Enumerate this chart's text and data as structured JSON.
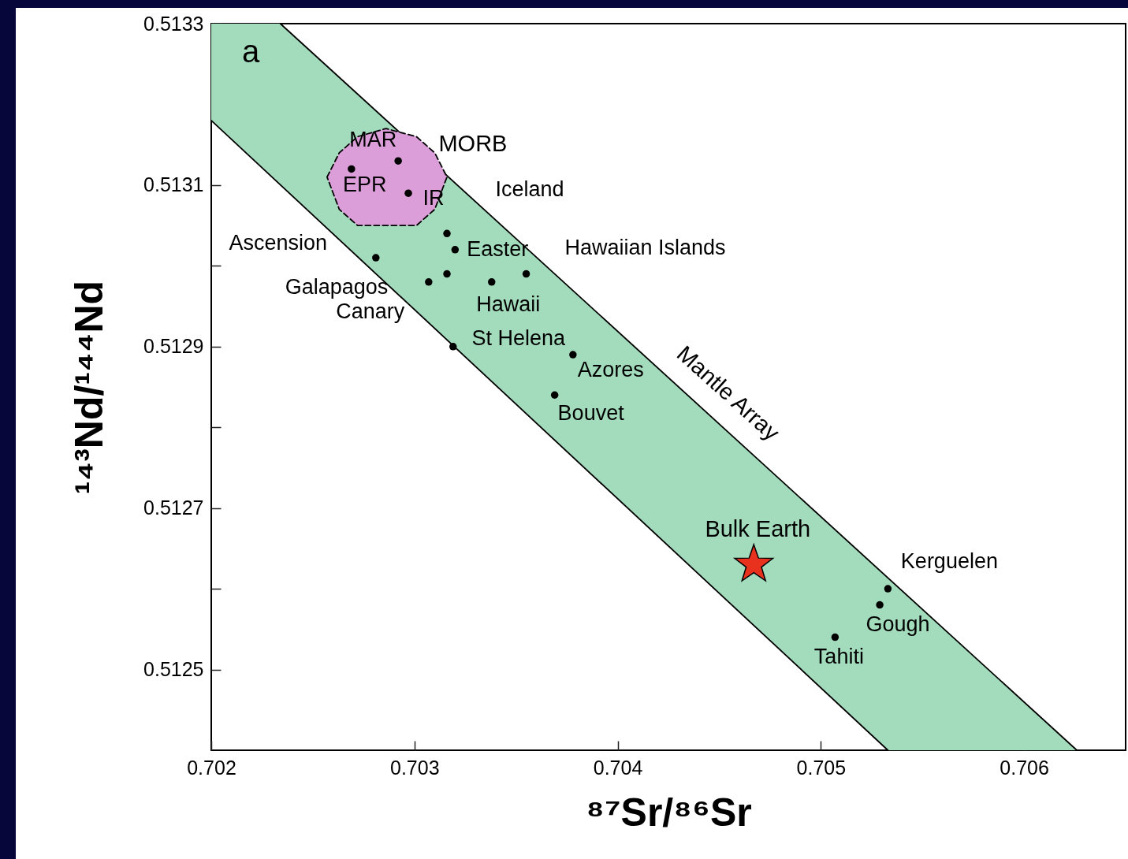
{
  "chart_data": {
    "type": "scatter",
    "xlabel": "⁸⁷Sr/⁸⁶Sr",
    "ylabel": "¹⁴³Nd/¹⁴⁴Nd",
    "xlim": [
      0.702,
      0.7065
    ],
    "ylim": [
      0.5124,
      0.5133
    ],
    "xticks": [
      0.702,
      0.703,
      0.704,
      0.705,
      0.706
    ],
    "yticks": [
      0.5125,
      {
        "value": 0.5126,
        "label": null
      },
      0.5127,
      {
        "value": 0.5128,
        "label": null
      },
      0.5129,
      {
        "value": 0.513,
        "label": null
      },
      0.5131,
      {
        "value": 0.5132,
        "label": null
      },
      0.5133
    ],
    "grid": false,
    "series": [
      {
        "name": "Mantle Array",
        "type": "line",
        "line_style": "solid",
        "color": "#000000",
        "x": [
          0.70234,
          0.70626
        ],
        "values": [
          0.5133,
          0.5124
        ]
      },
      {
        "type": "line",
        "line_style": "solid",
        "color": "#000000",
        "x": [
          0.702,
          0.70533
        ],
        "values": [
          0.51318,
          0.5124
        ]
      },
      {
        "name": "MORB",
        "type": "area",
        "line_style": "dashed",
        "color": "#dc9ed8",
        "x": [
          0.70257,
          0.70263,
          0.70272,
          0.70286,
          0.70301,
          0.7031,
          0.70316,
          0.7031,
          0.70301,
          0.70286,
          0.70272,
          0.70263,
          0.70257
        ],
        "values": [
          0.51311,
          0.51314,
          0.51316,
          0.51317,
          0.51316,
          0.51314,
          0.51311,
          0.51307,
          0.51305,
          0.51305,
          0.51305,
          0.51307,
          0.51311
        ]
      },
      {
        "marker": "circle",
        "color": "#000000",
        "x": [
          0.70269,
          0.70292,
          0.70297,
          0.70316,
          0.7032,
          0.70281,
          0.70316,
          0.70307,
          0.70338,
          0.70355,
          0.70319,
          0.70378,
          0.70369,
          0.70533,
          0.70529,
          0.70507
        ],
        "values": [
          0.51312,
          0.51313,
          0.51309,
          0.51304,
          0.51302,
          0.51301,
          0.51299,
          0.51298,
          0.51298,
          0.51299,
          0.5129,
          0.51289,
          0.51284,
          0.5126,
          0.51258,
          0.51254
        ]
      },
      {
        "name": "Bulk Earth",
        "type": "scatter",
        "marker": "star",
        "color": "#e8321e",
        "x": [
          0.70467
        ],
        "values": [
          0.51263
        ]
      }
    ],
    "annotations": [
      "a",
      {
        "text": "EPR",
        "x": 0.70269,
        "y": 0.51312
      },
      {
        "text": "MAR",
        "x": 0.70292,
        "y": 0.51313
      },
      {
        "text": "IR",
        "x": 0.70297,
        "y": 0.51309
      },
      {
        "text": "Iceland",
        "x": 0.70316,
        "y": 0.51304
      },
      {
        "text": "Easter",
        "x": 0.7032,
        "y": 0.51302
      },
      {
        "text": "Ascension",
        "x": 0.70281,
        "y": 0.51301
      },
      {
        "text": "Galapagos",
        "x": 0.70316,
        "y": 0.51299
      },
      {
        "text": "Canary",
        "x": 0.70307,
        "y": 0.51298
      },
      {
        "text": "Hawaii",
        "x": 0.70338,
        "y": 0.51298
      },
      {
        "text": "Hawaiian Islands",
        "x": 0.70355,
        "y": 0.51299
      },
      {
        "text": "St Helena",
        "x": 0.70319,
        "y": 0.5129
      },
      {
        "text": "Azores",
        "x": 0.70378,
        "y": 0.51289
      },
      {
        "text": "Bouvet",
        "x": 0.70369,
        "y": 0.51284
      },
      {
        "text": "Kerguelen",
        "x": 0.70533,
        "y": 0.5126
      },
      {
        "text": "Gough",
        "x": 0.70529,
        "y": 0.51258
      },
      {
        "text": "Tahiti",
        "x": 0.70507,
        "y": 0.51254
      }
    ]
  }
}
